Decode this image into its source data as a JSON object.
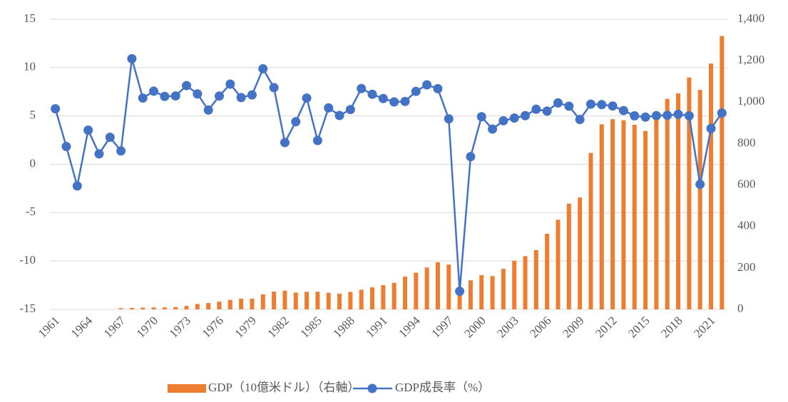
{
  "chart_data": {
    "type": "bar-line",
    "categories": [
      1961,
      null,
      null,
      1964,
      null,
      null,
      1967,
      null,
      null,
      1970,
      null,
      null,
      1973,
      null,
      null,
      1976,
      null,
      null,
      1979,
      null,
      null,
      1982,
      null,
      null,
      1985,
      null,
      null,
      1988,
      null,
      null,
      1991,
      null,
      null,
      1994,
      null,
      null,
      1997,
      null,
      null,
      2000,
      null,
      null,
      2003,
      null,
      null,
      2006,
      null,
      null,
      2009,
      null,
      null,
      2012,
      null,
      null,
      2015,
      null,
      null,
      2018,
      null,
      null,
      2021,
      null
    ],
    "series": [
      {
        "name": "GDP（10億米ドル）（右軸）",
        "type": "bar",
        "axis": "y2",
        "color": "#ed7d31",
        "values": [
          null,
          null,
          null,
          null,
          null,
          null,
          5.67,
          7.08,
          8.34,
          9.15,
          9.33,
          10.85,
          16.27,
          25.8,
          30.46,
          37.27,
          45.81,
          51.46,
          51.76,
          72.48,
          85.52,
          90.16,
          81.05,
          84.85,
          85.29,
          79.95,
          75.93,
          84.3,
          94.45,
          106.14,
          116.62,
          128.03,
          158.01,
          176.89,
          202.13,
          227.37,
          215.75,
          95.45,
          140.0,
          165.02,
          160.45,
          195.66,
          234.77,
          256.84,
          285.87,
          364.57,
          432.22,
          510.23,
          539.58,
          755.09,
          892.97,
          917.87,
          912.52,
          890.81,
          860.85,
          931.88,
          1015.62,
          1042.27,
          1119.1,
          1059.06,
          1186.09,
          1319.1
        ]
      },
      {
        "name": "GDP成長率（%）",
        "type": "line",
        "color": "#4472c4",
        "values": [
          5.74,
          1.84,
          -2.24,
          3.53,
          1.08,
          2.79,
          1.38,
          10.92,
          6.85,
          7.56,
          7.02,
          7.07,
          8.14,
          7.28,
          5.61,
          7.06,
          8.29,
          6.9,
          7.18,
          9.88,
          7.93,
          2.25,
          4.4,
          6.85,
          2.46,
          5.83,
          5.05,
          5.66,
          7.83,
          7.24,
          6.8,
          6.45,
          6.5,
          7.54,
          8.22,
          7.82,
          4.7,
          -13.13,
          0.79,
          4.92,
          3.64,
          4.5,
          4.78,
          5.03,
          5.69,
          5.5,
          6.35,
          6.01,
          4.63,
          6.22,
          6.17,
          6.03,
          5.56,
          5.01,
          4.88,
          5.03,
          5.07,
          5.17,
          5.02,
          -2.07,
          3.7,
          5.31
        ]
      }
    ],
    "ylim": [
      -15,
      15
    ],
    "yticks": [
      -15,
      -10,
      -5,
      0,
      5,
      10,
      15
    ],
    "y2lim": [
      0,
      1400
    ],
    "y2ticks": [
      0,
      200,
      400,
      600,
      800,
      {
        "value": 1000,
        "label": "1,000"
      },
      {
        "value": 1200,
        "label": "1,200"
      },
      {
        "value": 1400,
        "label": "1,400"
      }
    ],
    "grid": true,
    "legend": "bottom"
  }
}
